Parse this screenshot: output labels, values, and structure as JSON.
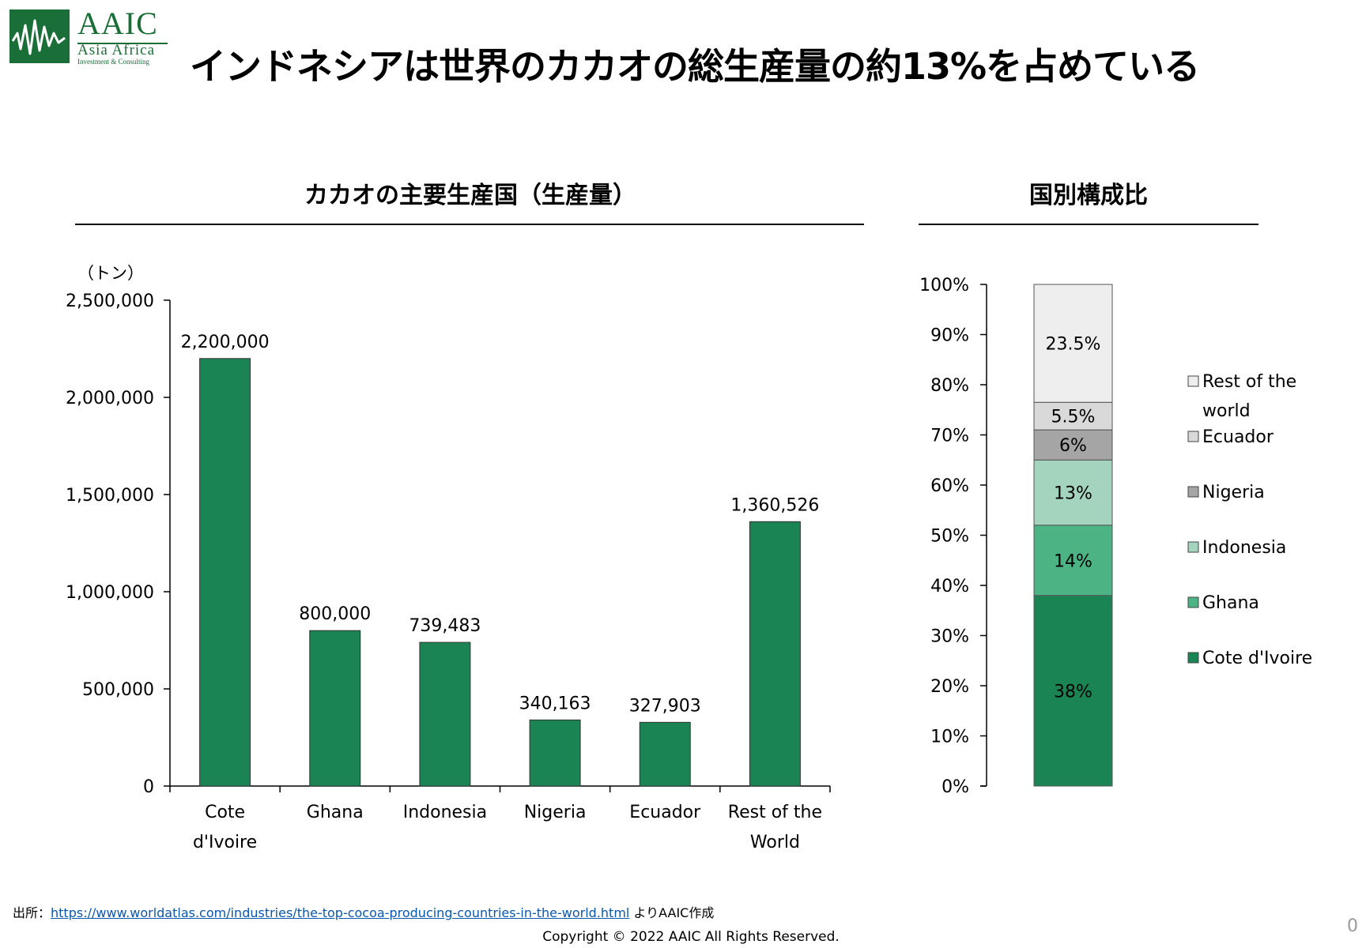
{
  "logo": {
    "name": "AAIC",
    "line1": "Asia Africa",
    "line2": "Investment & Consulting"
  },
  "page_title": "インドネシアは世界のカカオの総生産量の約13%を占めている",
  "left_chart_title": "カカオの主要生産国（生産量）",
  "right_chart_title": "国別構成比",
  "footer": {
    "source_prefix": "出所：",
    "source_url": "https://www.worldatlas.com/industries/the-top-cocoa-producing-countries-in-the-world.html",
    "source_suffix": " よりAAIC作成",
    "copyright": "Copyright © 2022 AAIC All Rights Reserved.",
    "page_number": "0"
  },
  "colors": {
    "bar": "#1a8454",
    "cote": "#1a8454",
    "ghana": "#4cb384",
    "indonesia": "#a5d4be",
    "nigeria": "#a5a5a5",
    "ecuador": "#d9d9d9",
    "rest": "#eeeeee",
    "brand": "#1a6e37"
  },
  "chart_data": [
    {
      "type": "bar",
      "unit_label": "（トン）",
      "categories": [
        [
          "Cote",
          "d'Ivoire"
        ],
        [
          "Ghana"
        ],
        [
          "Indonesia"
        ],
        [
          "Nigeria"
        ],
        [
          "Ecuador"
        ],
        [
          "Rest of the",
          "World"
        ]
      ],
      "values": [
        2200000,
        800000,
        739483,
        340163,
        327903,
        1360526
      ],
      "value_labels": [
        "2,200,000",
        "800,000",
        "739,483",
        "340,163",
        "327,903",
        "1,360,526"
      ],
      "ylim": [
        0,
        2500000
      ],
      "yticks": [
        0,
        500000,
        1000000,
        1500000,
        2000000,
        2500000
      ],
      "ytick_labels": [
        "0",
        "500,000",
        "1,000,000",
        "1,500,000",
        "2,000,000",
        "2,500,000"
      ]
    },
    {
      "type": "bar",
      "stacked": true,
      "ylim": [
        0,
        100
      ],
      "yticks": [
        0,
        10,
        20,
        30,
        40,
        50,
        60,
        70,
        80,
        90,
        100
      ],
      "ytick_labels": [
        "0%",
        "10%",
        "20%",
        "30%",
        "40%",
        "50%",
        "60%",
        "70%",
        "80%",
        "90%",
        "100%"
      ],
      "series": [
        {
          "name": "Cote d'Ivoire",
          "value": 38,
          "label": "38%",
          "color_key": "cote"
        },
        {
          "name": "Ghana",
          "value": 14,
          "label": "14%",
          "color_key": "ghana"
        },
        {
          "name": "Indonesia",
          "value": 13,
          "label": "13%",
          "color_key": "indonesia"
        },
        {
          "name": "Nigeria",
          "value": 6,
          "label": "6%",
          "color_key": "nigeria"
        },
        {
          "name": "Ecuador",
          "value": 5.5,
          "label": "5.5%",
          "color_key": "ecuador"
        },
        {
          "name": "Rest of the world",
          "value": 23.5,
          "label": "23.5%",
          "color_key": "rest"
        }
      ],
      "legend": [
        {
          "lines": [
            "Rest of the",
            "world"
          ],
          "color_key": "rest"
        },
        {
          "lines": [
            "Ecuador"
          ],
          "color_key": "ecuador"
        },
        {
          "lines": [
            "Nigeria"
          ],
          "color_key": "nigeria"
        },
        {
          "lines": [
            "Indonesia"
          ],
          "color_key": "indonesia"
        },
        {
          "lines": [
            "Ghana"
          ],
          "color_key": "ghana"
        },
        {
          "lines": [
            "Cote d'Ivoire"
          ],
          "color_key": "cote"
        }
      ]
    }
  ]
}
